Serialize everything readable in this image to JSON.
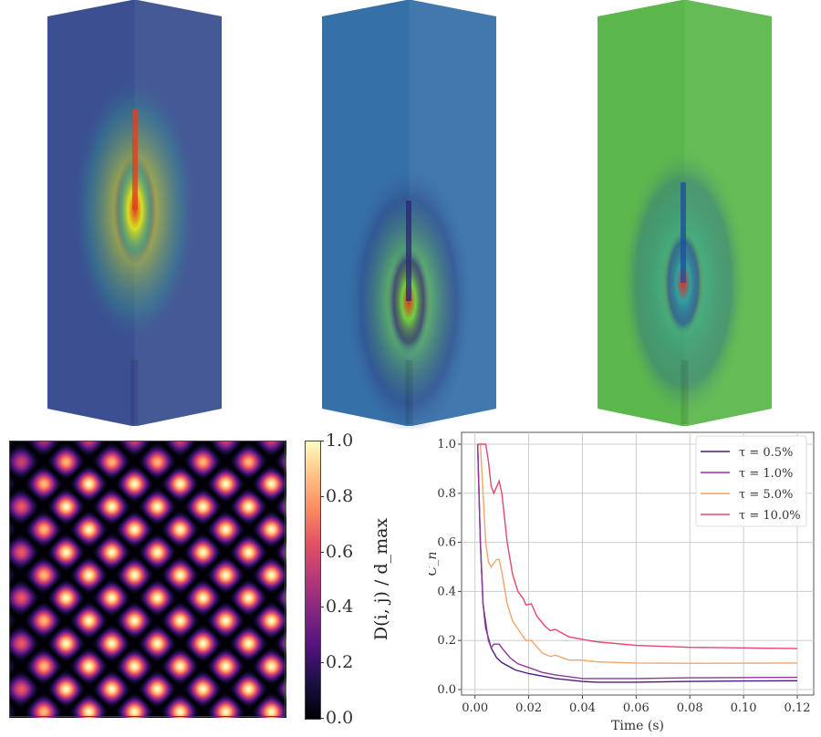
{
  "top_panels": [
    {
      "colors": {
        "background": "#3b4f91",
        "field_low": "#2f9f8f",
        "field_mid": "#d8e020",
        "field_high": "#e04020"
      }
    },
    {
      "colors": {
        "background": "#3670a8",
        "field_low": "#2a2a70",
        "field_mid": "#70d040",
        "field_high": "#e03020"
      }
    },
    {
      "colors": {
        "background": "#5cb84c",
        "field_low": "#1f4fa0",
        "field_mid": "#30a0a0",
        "field_high": "#e03020"
      }
    }
  ],
  "chart_data": [
    {
      "type": "heatmap",
      "colormap": "magma",
      "colorbar": {
        "label": "D(i, j) / d_max",
        "range": [
          0.0,
          1.0
        ],
        "ticks": [
          "0.0",
          "0.2",
          "0.4",
          "0.6",
          "0.8",
          "1.0"
        ]
      }
    },
    {
      "type": "line",
      "xlabel": "Time  (s)",
      "ylabel": "C_n",
      "xlim": [
        -0.005,
        0.125
      ],
      "ylim": [
        -0.02,
        1.04
      ],
      "xticks": [
        "0.00",
        "0.02",
        "0.04",
        "0.06",
        "0.08",
        "0.10",
        "0.12"
      ],
      "yticks": [
        "0.0",
        "0.2",
        "0.4",
        "0.6",
        "0.8",
        "1.0"
      ],
      "grid": true,
      "legend": "top-right",
      "series": [
        {
          "name": "τ = 0.5%",
          "color": "#4b1a80",
          "x": [
            0.001,
            0.002,
            0.003,
            0.004,
            0.006,
            0.008,
            0.01,
            0.015,
            0.02,
            0.03,
            0.04,
            0.045,
            0.06,
            0.08,
            0.1,
            0.12
          ],
          "y": [
            1.0,
            0.6,
            0.35,
            0.25,
            0.17,
            0.13,
            0.11,
            0.08,
            0.065,
            0.045,
            0.033,
            0.03,
            0.03,
            0.033,
            0.035,
            0.036
          ]
        },
        {
          "name": "τ = 1.0%",
          "color": "#8e3a94",
          "x": [
            0.001,
            0.002,
            0.003,
            0.005,
            0.006,
            0.007,
            0.009,
            0.01,
            0.013,
            0.016,
            0.02,
            0.025,
            0.03,
            0.04,
            0.05,
            0.06,
            0.08,
            0.12
          ],
          "y": [
            1.0,
            0.6,
            0.35,
            0.2,
            0.17,
            0.185,
            0.185,
            0.17,
            0.13,
            0.105,
            0.09,
            0.07,
            0.06,
            0.045,
            0.045,
            0.045,
            0.048,
            0.05
          ]
        },
        {
          "name": "τ = 5.0%",
          "color": "#f4a46a",
          "x": [
            0.002,
            0.003,
            0.004,
            0.005,
            0.006,
            0.008,
            0.009,
            0.01,
            0.012,
            0.014,
            0.017,
            0.019,
            0.021,
            0.025,
            0.028,
            0.03,
            0.035,
            0.04,
            0.045,
            0.06,
            0.08,
            0.12
          ],
          "y": [
            1.0,
            0.8,
            0.6,
            0.52,
            0.5,
            0.53,
            0.53,
            0.48,
            0.35,
            0.28,
            0.23,
            0.2,
            0.2,
            0.15,
            0.135,
            0.14,
            0.12,
            0.12,
            0.113,
            0.108,
            0.107,
            0.108
          ]
        },
        {
          "name": "τ = 10.0%",
          "color": "#e8466a",
          "x": [
            0.001,
            0.004,
            0.005,
            0.006,
            0.007,
            0.009,
            0.01,
            0.012,
            0.014,
            0.016,
            0.018,
            0.019,
            0.021,
            0.023,
            0.026,
            0.028,
            0.03,
            0.035,
            0.04,
            0.045,
            0.06,
            0.08,
            0.1,
            0.12
          ],
          "y": [
            1.0,
            1.0,
            0.93,
            0.83,
            0.8,
            0.85,
            0.8,
            0.6,
            0.47,
            0.4,
            0.37,
            0.345,
            0.35,
            0.3,
            0.26,
            0.24,
            0.245,
            0.215,
            0.205,
            0.195,
            0.18,
            0.172,
            0.17,
            0.167
          ]
        }
      ]
    }
  ]
}
